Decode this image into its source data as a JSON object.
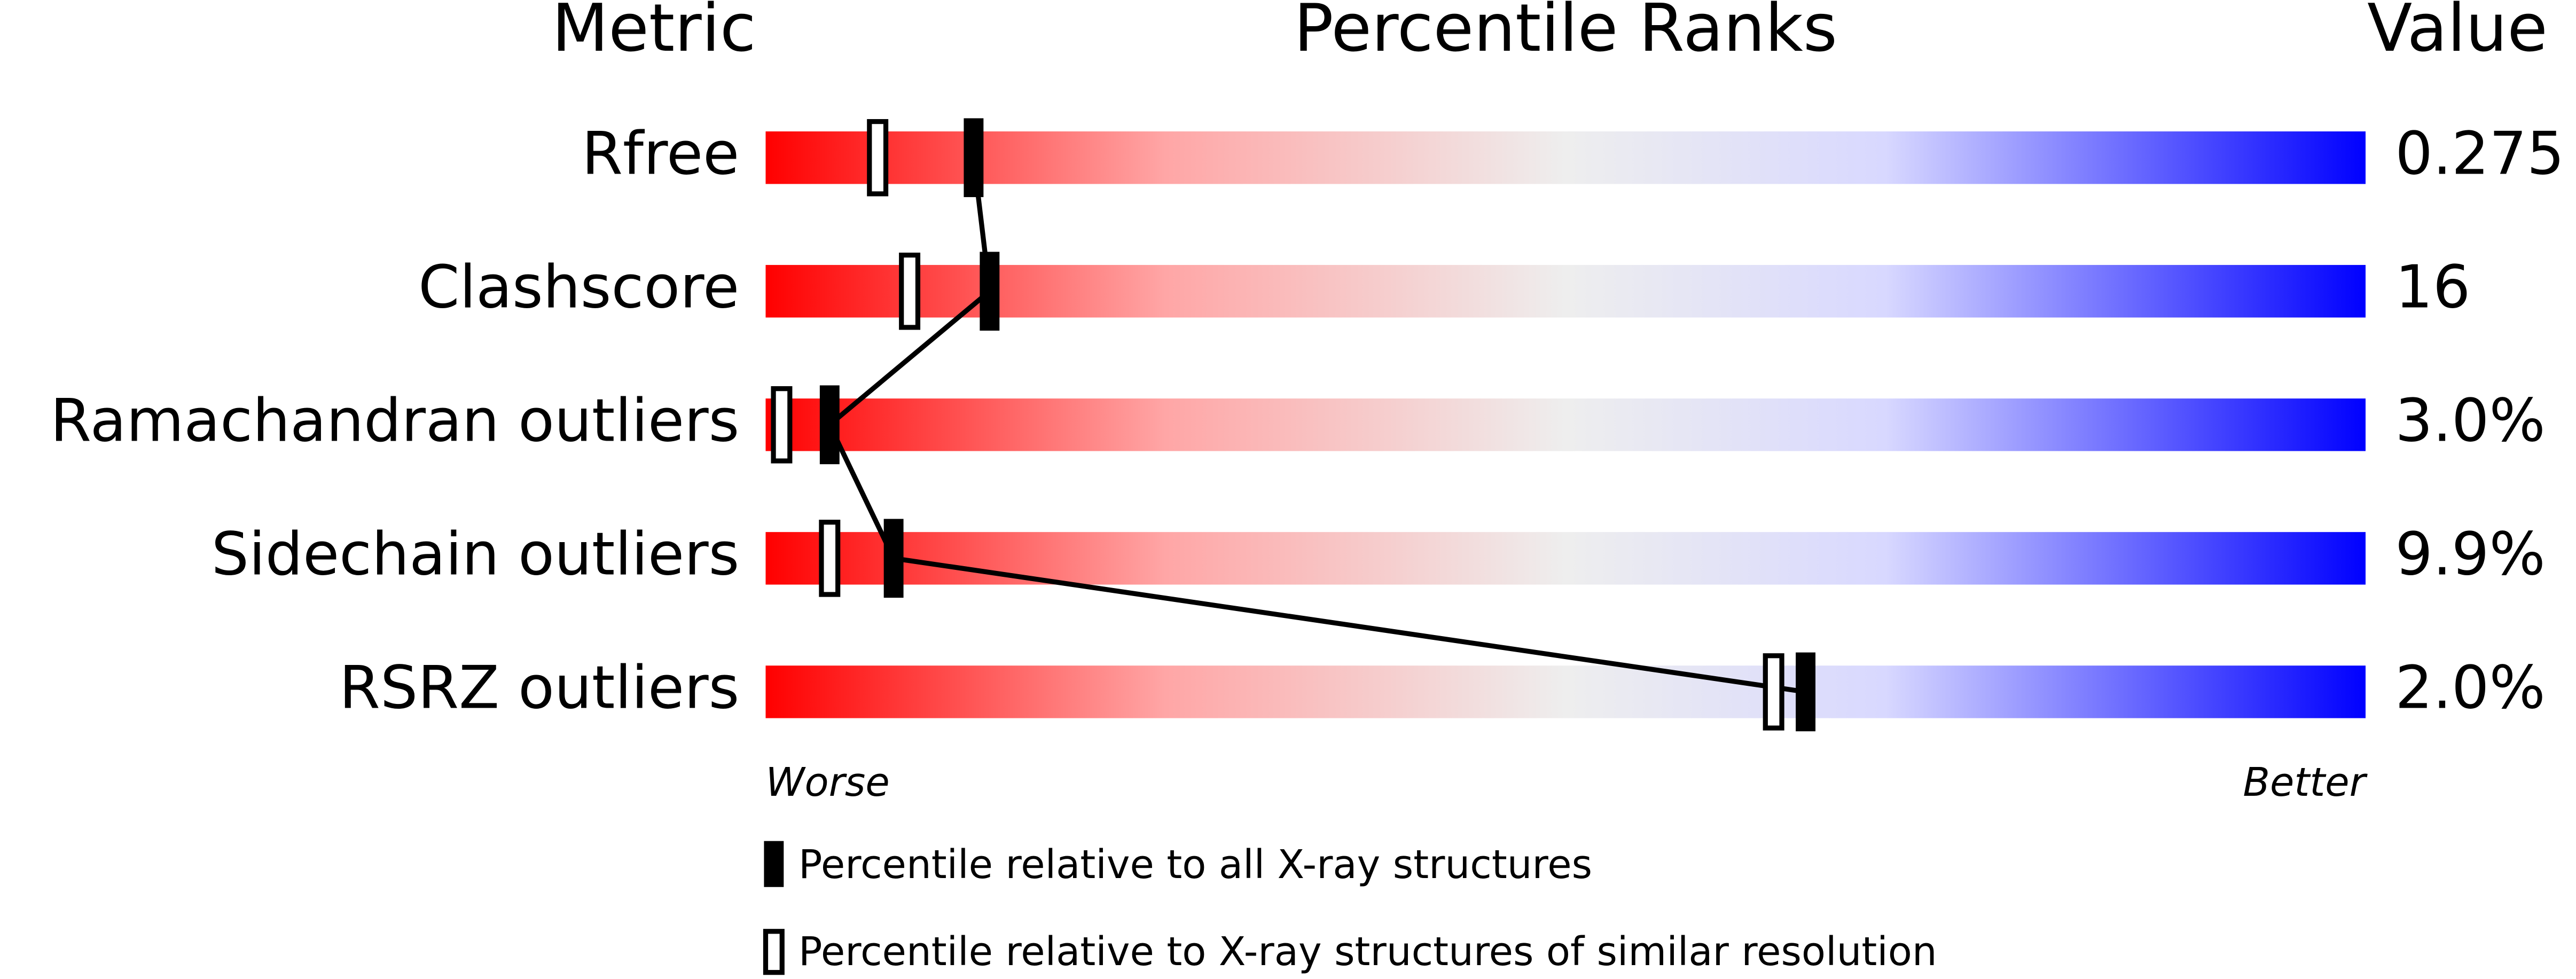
{
  "chart_data": {
    "type": "percentile-slider",
    "headers": [
      "Metric",
      "Percentile Ranks",
      "Value"
    ],
    "categories": [
      "Rfree",
      "Clashscore",
      "Ramachandran outliers",
      "Sidechain outliers",
      "RSRZ outliers"
    ],
    "metric_values": [
      "0.275",
      "16",
      "3.0%",
      "9.9%",
      "2.0%"
    ],
    "series": [
      {
        "name": "Percentile relative to all X-ray structures",
        "color": "#000000",
        "style": "filled",
        "values": [
          13,
          14,
          4,
          8,
          65
        ]
      },
      {
        "name": "Percentile relative to X-ray structures of similar resolution",
        "color": "#000000",
        "style": "open",
        "values": [
          7,
          9,
          1,
          4,
          63
        ]
      }
    ],
    "xlim": [
      0,
      100
    ],
    "axis_labels": {
      "low": "Worse",
      "high": "Better"
    }
  }
}
